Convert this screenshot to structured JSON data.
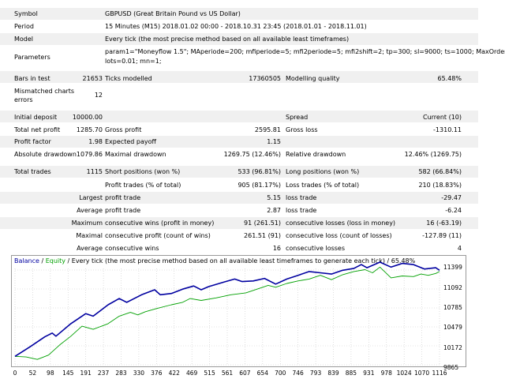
{
  "report": {
    "symbol_label": "Symbol",
    "symbol_value": "GBPUSD (Great Britain Pound vs US Dollar)",
    "period_label": "Period",
    "period_value": "15 Minutes (M15) 2018.01.02 00:00 - 2018.10.31 23:45 (2018.01.01 - 2018.11.01)",
    "model_label": "Model",
    "model_value": "Every tick (the most precise method based on all available least timeframes)",
    "parameters_label": "Parameters",
    "parameters_line1": "param1=\"Moneyflow 1.5\"; MAperiode=200; mfiperiode=5; mfi2periode=5; mfi2shift=2; tp=300; sl=9000; ts=1000; MaxOrders=20;",
    "parameters_line2": "lots=0.01; mn=1;",
    "bars_label": "Bars in test",
    "bars_value": "21653",
    "ticks_label": "Ticks modelled",
    "ticks_value": "17360505",
    "quality_label": "Modelling quality",
    "quality_value": "65.48%",
    "mismatch_label_1": "Mismatched charts",
    "mismatch_label_2": "errors",
    "mismatch_value": "12",
    "deposit_label": "Initial deposit",
    "deposit_value": "10000.00",
    "spread_label": "Spread",
    "spread_value": "Current (10)",
    "netprofit_label": "Total net profit",
    "netprofit_value": "1285.70",
    "grossprofit_label": "Gross profit",
    "grossprofit_value": "2595.81",
    "grossloss_label": "Gross loss",
    "grossloss_value": "-1310.11",
    "pf_label": "Profit factor",
    "pf_value": "1.98",
    "payoff_label": "Expected payoff",
    "payoff_value": "1.15",
    "absdd_label": "Absolute drawdown",
    "absdd_value": "1079.86",
    "maxdd_label": "Maximal drawdown",
    "maxdd_value": "1269.75 (12.46%)",
    "reldd_label": "Relative drawdown",
    "reldd_value": "12.46% (1269.75)",
    "trades_label": "Total trades",
    "trades_value": "1115",
    "short_label": "Short positions (won %)",
    "short_value": "533 (96.81%)",
    "long_label": "Long positions (won %)",
    "long_value": "582 (66.84%)",
    "ptrades_label": "Profit trades (% of total)",
    "ptrades_value": "905 (81.17%)",
    "ltrades_label": "Loss trades (% of total)",
    "ltrades_value": "210 (18.83%)",
    "largest_label": "Largest",
    "average_label": "Average",
    "maximum_label": "Maximum",
    "maximal_label": "Maximal",
    "profit_trade_label": "profit trade",
    "loss_trade_label": "loss trade",
    "largest_profit": "5.15",
    "largest_loss": "-29.47",
    "average_profit": "2.87",
    "average_loss": "-6.24",
    "cons_wins_money_label": "consecutive wins (profit in money)",
    "cons_wins_money_value": "91 (261.51)",
    "cons_losses_money_label": "consecutive losses (loss in money)",
    "cons_losses_money_value": "16 (-63.19)",
    "cons_profit_count_label": "consecutive profit (count of wins)",
    "cons_profit_count_value": "261.51 (91)",
    "cons_loss_count_label": "consecutive loss (count of losses)",
    "cons_loss_count_value": "-127.89 (11)",
    "avg_cons_wins_label": "consecutive wins",
    "avg_cons_wins_value": "16",
    "avg_cons_losses_label": "consecutive losses",
    "avg_cons_losses_value": "4"
  },
  "chart_header": {
    "balance": "Balance",
    "sep1": " / ",
    "equity": "Equity",
    "rest": " / Every tick (the most precise method based on all available least timeframes to generate each tick) / 65.48%"
  },
  "colors": {
    "balance": "#0000a0",
    "equity": "#00a000",
    "stripe": "#f0f0f0",
    "grid": "#c8c8c8"
  },
  "chart_data": {
    "type": "line",
    "x_ticks": [
      "0",
      "52",
      "98",
      "145",
      "191",
      "237",
      "283",
      "330",
      "376",
      "422",
      "469",
      "515",
      "561",
      "607",
      "654",
      "700",
      "746",
      "793",
      "839",
      "885",
      "931",
      "978",
      "1024",
      "1070",
      "1116"
    ],
    "y_ticks": [
      "11399",
      "11092",
      "10785",
      "10479",
      "10172",
      "9865"
    ],
    "ylim": [
      9865,
      11399
    ],
    "xlim": [
      0,
      1140
    ],
    "series": [
      {
        "name": "Balance",
        "values": [
          [
            0,
            10000
          ],
          [
            40,
            10150
          ],
          [
            80,
            10310
          ],
          [
            100,
            10370
          ],
          [
            110,
            10320
          ],
          [
            150,
            10520
          ],
          [
            190,
            10680
          ],
          [
            210,
            10640
          ],
          [
            250,
            10820
          ],
          [
            280,
            10920
          ],
          [
            300,
            10860
          ],
          [
            340,
            10980
          ],
          [
            375,
            11060
          ],
          [
            390,
            10980
          ],
          [
            420,
            11000
          ],
          [
            450,
            11070
          ],
          [
            480,
            11120
          ],
          [
            500,
            11060
          ],
          [
            520,
            11110
          ],
          [
            560,
            11180
          ],
          [
            590,
            11230
          ],
          [
            610,
            11190
          ],
          [
            640,
            11200
          ],
          [
            670,
            11240
          ],
          [
            700,
            11150
          ],
          [
            730,
            11230
          ],
          [
            760,
            11290
          ],
          [
            790,
            11350
          ],
          [
            820,
            11330
          ],
          [
            850,
            11310
          ],
          [
            880,
            11370
          ],
          [
            910,
            11400
          ],
          [
            930,
            11460
          ],
          [
            945,
            11410
          ],
          [
            980,
            11500
          ],
          [
            1010,
            11420
          ],
          [
            1040,
            11480
          ],
          [
            1070,
            11460
          ],
          [
            1100,
            11390
          ],
          [
            1130,
            11410
          ],
          [
            1140,
            11370
          ]
        ]
      },
      {
        "name": "Equity",
        "values": [
          [
            0,
            10000
          ],
          [
            30,
            9990
          ],
          [
            60,
            9950
          ],
          [
            90,
            10020
          ],
          [
            120,
            10180
          ],
          [
            150,
            10320
          ],
          [
            180,
            10480
          ],
          [
            210,
            10430
          ],
          [
            250,
            10520
          ],
          [
            280,
            10640
          ],
          [
            310,
            10700
          ],
          [
            330,
            10660
          ],
          [
            350,
            10710
          ],
          [
            380,
            10760
          ],
          [
            420,
            10820
          ],
          [
            450,
            10860
          ],
          [
            470,
            10920
          ],
          [
            500,
            10890
          ],
          [
            540,
            10930
          ],
          [
            580,
            10980
          ],
          [
            620,
            11010
          ],
          [
            650,
            11070
          ],
          [
            680,
            11130
          ],
          [
            700,
            11100
          ],
          [
            730,
            11160
          ],
          [
            760,
            11200
          ],
          [
            790,
            11230
          ],
          [
            820,
            11290
          ],
          [
            850,
            11220
          ],
          [
            880,
            11300
          ],
          [
            910,
            11350
          ],
          [
            940,
            11380
          ],
          [
            960,
            11330
          ],
          [
            980,
            11420
          ],
          [
            1010,
            11250
          ],
          [
            1040,
            11280
          ],
          [
            1070,
            11270
          ],
          [
            1090,
            11310
          ],
          [
            1110,
            11290
          ],
          [
            1130,
            11320
          ],
          [
            1140,
            11350
          ]
        ]
      }
    ]
  }
}
